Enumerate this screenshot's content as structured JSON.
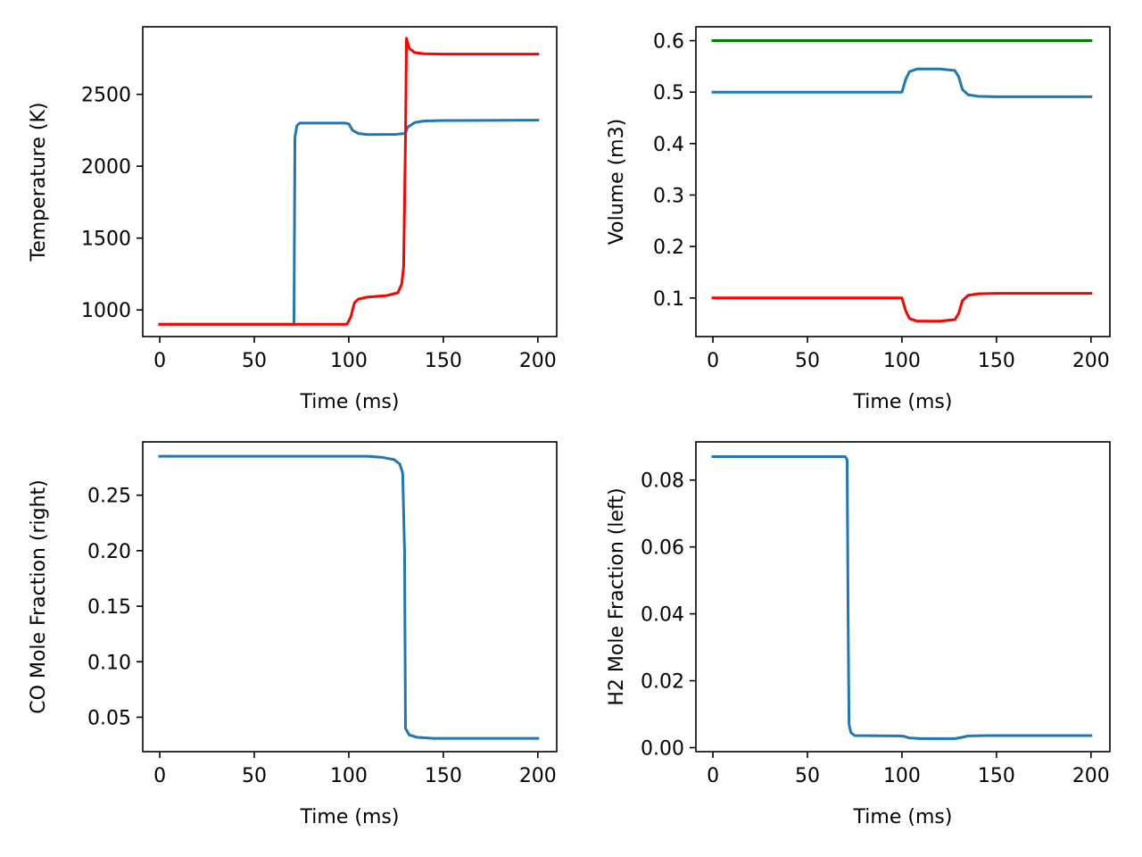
{
  "chart_data": [
    {
      "type": "line",
      "xlabel": "Time (ms)",
      "ylabel": "Temperature (K)",
      "xlim": [
        -9,
        210
      ],
      "ylim": [
        815,
        2970
      ],
      "xticks": [
        0,
        50,
        100,
        150,
        200
      ],
      "xtick_labels": [
        "0",
        "50",
        "100",
        "150",
        "200"
      ],
      "yticks": [
        1000,
        1500,
        2000,
        2500
      ],
      "ytick_labels": [
        "1000",
        "1500",
        "2000",
        "2500"
      ],
      "grid": false,
      "series": [
        {
          "color": "#1f77b4",
          "points": [
            [
              0,
              900
            ],
            [
              70,
              900
            ],
            [
              71,
              900
            ],
            [
              71.5,
              2200
            ],
            [
              72.5,
              2280
            ],
            [
              74,
              2300
            ],
            [
              98,
              2300
            ],
            [
              100,
              2295
            ],
            [
              102,
              2250
            ],
            [
              105,
              2228
            ],
            [
              110,
              2220
            ],
            [
              125,
              2222
            ],
            [
              130,
              2228
            ],
            [
              131,
              2270
            ],
            [
              135,
              2305
            ],
            [
              140,
              2315
            ],
            [
              150,
              2318
            ],
            [
              200,
              2320
            ]
          ]
        },
        {
          "color": "#ff0000",
          "points": [
            [
              0,
              900
            ],
            [
              99,
              900
            ],
            [
              101,
              950
            ],
            [
              103,
              1050
            ],
            [
              105,
              1075
            ],
            [
              110,
              1090
            ],
            [
              120,
              1100
            ],
            [
              126,
              1120
            ],
            [
              128,
              1180
            ],
            [
              129,
              1300
            ],
            [
              130,
              2200
            ],
            [
              130.5,
              2890
            ],
            [
              132,
              2820
            ],
            [
              135,
              2790
            ],
            [
              140,
              2782
            ],
            [
              150,
              2780
            ],
            [
              200,
              2780
            ]
          ]
        }
      ]
    },
    {
      "type": "line",
      "xlabel": "Time (ms)",
      "ylabel": "Volume (m3)",
      "xlim": [
        -9,
        210
      ],
      "ylim": [
        0.025,
        0.627
      ],
      "xticks": [
        0,
        50,
        100,
        150,
        200
      ],
      "xtick_labels": [
        "0",
        "50",
        "100",
        "150",
        "200"
      ],
      "yticks": [
        0.1,
        0.2,
        0.3,
        0.4,
        0.5,
        0.6
      ],
      "ytick_labels": [
        "0.1",
        "0.2",
        "0.3",
        "0.4",
        "0.5",
        "0.6"
      ],
      "grid": false,
      "series": [
        {
          "color": "#008000",
          "points": [
            [
              0,
              0.6
            ],
            [
              200,
              0.6
            ]
          ]
        },
        {
          "color": "#1f77b4",
          "points": [
            [
              0,
              0.5
            ],
            [
              100,
              0.5
            ],
            [
              102,
              0.525
            ],
            [
              104,
              0.54
            ],
            [
              108,
              0.545
            ],
            [
              120,
              0.545
            ],
            [
              128,
              0.542
            ],
            [
              130,
              0.53
            ],
            [
              132,
              0.505
            ],
            [
              135,
              0.495
            ],
            [
              140,
              0.492
            ],
            [
              150,
              0.491
            ],
            [
              200,
              0.491
            ]
          ]
        },
        {
          "color": "#ff0000",
          "points": [
            [
              0,
              0.1
            ],
            [
              100,
              0.1
            ],
            [
              102,
              0.075
            ],
            [
              104,
              0.06
            ],
            [
              108,
              0.055
            ],
            [
              120,
              0.055
            ],
            [
              128,
              0.058
            ],
            [
              130,
              0.07
            ],
            [
              132,
              0.095
            ],
            [
              135,
              0.105
            ],
            [
              140,
              0.108
            ],
            [
              150,
              0.109
            ],
            [
              200,
              0.109
            ]
          ]
        }
      ]
    },
    {
      "type": "line",
      "xlabel": "Time (ms)",
      "ylabel": "CO Mole Fraction (right)",
      "xlim": [
        -9,
        210
      ],
      "ylim": [
        0.019,
        0.298
      ],
      "xticks": [
        0,
        50,
        100,
        150,
        200
      ],
      "xtick_labels": [
        "0",
        "50",
        "100",
        "150",
        "200"
      ],
      "yticks": [
        0.05,
        0.1,
        0.15,
        0.2,
        0.25
      ],
      "ytick_labels": [
        "0.05",
        "0.10",
        "0.15",
        "0.20",
        "0.25"
      ],
      "grid": false,
      "series": [
        {
          "color": "#1f77b4",
          "points": [
            [
              0,
              0.285
            ],
            [
              110,
              0.285
            ],
            [
              118,
              0.284
            ],
            [
              124,
              0.282
            ],
            [
              127,
              0.278
            ],
            [
              128.5,
              0.27
            ],
            [
              129.5,
              0.2
            ],
            [
              130,
              0.04
            ],
            [
              132,
              0.034
            ],
            [
              136,
              0.032
            ],
            [
              145,
              0.031
            ],
            [
              200,
              0.031
            ]
          ]
        }
      ]
    },
    {
      "type": "line",
      "xlabel": "Time (ms)",
      "ylabel": "H2 Mole Fraction (left)",
      "xlim": [
        -9,
        210
      ],
      "ylim": [
        -0.0012,
        0.0914
      ],
      "xticks": [
        0,
        50,
        100,
        150,
        200
      ],
      "xtick_labels": [
        "0",
        "50",
        "100",
        "150",
        "200"
      ],
      "yticks": [
        0.0,
        0.02,
        0.04,
        0.06,
        0.08
      ],
      "ytick_labels": [
        "0.00",
        "0.02",
        "0.04",
        "0.06",
        "0.08"
      ],
      "grid": false,
      "series": [
        {
          "color": "#1f77b4",
          "points": [
            [
              0,
              0.087
            ],
            [
              70,
              0.087
            ],
            [
              71,
              0.086
            ],
            [
              71.5,
              0.04
            ],
            [
              72,
              0.007
            ],
            [
              73,
              0.0045
            ],
            [
              75,
              0.0036
            ],
            [
              98,
              0.0035
            ],
            [
              101,
              0.0034
            ],
            [
              104,
              0.0029
            ],
            [
              110,
              0.0027
            ],
            [
              128,
              0.0027
            ],
            [
              131,
              0.003
            ],
            [
              135,
              0.0035
            ],
            [
              145,
              0.0036
            ],
            [
              200,
              0.0036
            ]
          ]
        }
      ]
    }
  ]
}
